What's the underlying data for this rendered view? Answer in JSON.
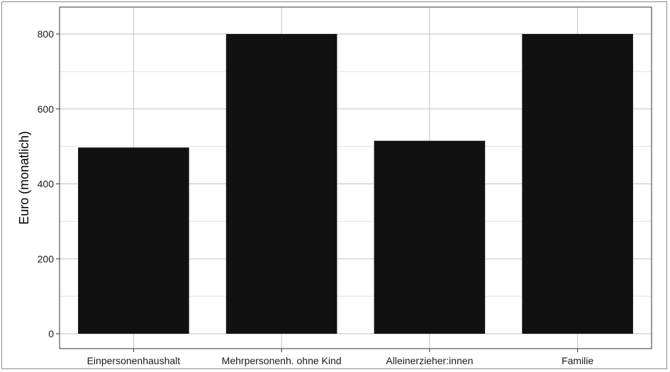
{
  "chart_data": {
    "type": "bar",
    "title": "",
    "xlabel": "",
    "ylabel": "Euro (monatlich)",
    "categories": [
      "Einpersonenhaushalt",
      "Mehrpersonenh. ohne Kind",
      "Alleinerzieher:innen",
      "Familie"
    ],
    "values": [
      497,
      800,
      515,
      800
    ],
    "ylim": [
      0,
      840
    ],
    "yticks": [
      0,
      200,
      400,
      600,
      800
    ],
    "ytick_labels": [
      "0",
      "200",
      "400",
      "600",
      "800"
    ],
    "grid": true,
    "minor_grid": true,
    "legend": "none",
    "colors": {
      "bar": "#111111",
      "major_grid": "#c2c2c2",
      "minor_grid": "#e2e2e2",
      "panel_border": "#333333"
    }
  }
}
